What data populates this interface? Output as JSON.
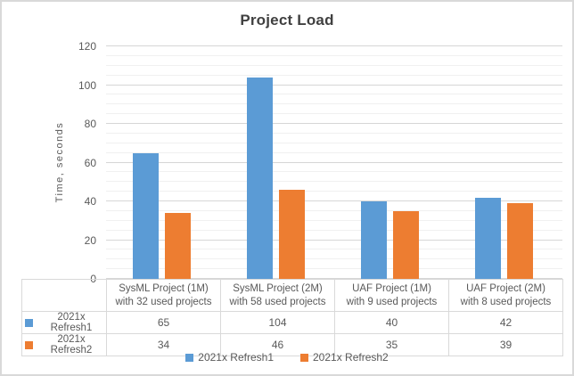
{
  "chart_data": {
    "type": "bar",
    "title": "Project Load",
    "ylabel": "Time, seconds",
    "ylim": [
      0,
      120
    ],
    "y_major_step": 20,
    "y_minor_step": 5,
    "grid": true,
    "legend_position": "bottom",
    "has_data_table": true,
    "categories": [
      "SysML Project (1M)\nwith 32 used projects",
      "SysML Project (2M)\nwith 58 used projects",
      "UAF Project (1M)\nwith 9 used projects",
      "UAF Project (2M)\nwith 8 used projects"
    ],
    "series": [
      {
        "name": "2021x Refresh1",
        "color": "#5B9BD5",
        "values": [
          65,
          104,
          40,
          42
        ]
      },
      {
        "name": "2021x Refresh2",
        "color": "#ED7D31",
        "values": [
          34,
          46,
          35,
          39
        ]
      }
    ]
  },
  "colors": {
    "major_gridline": "#d6d6d6",
    "minor_gridline": "#f0f0f0",
    "table_border": "#d9d9d9",
    "text": "#595959",
    "title_text": "#404040",
    "frame_border": "#d9d9d9"
  }
}
